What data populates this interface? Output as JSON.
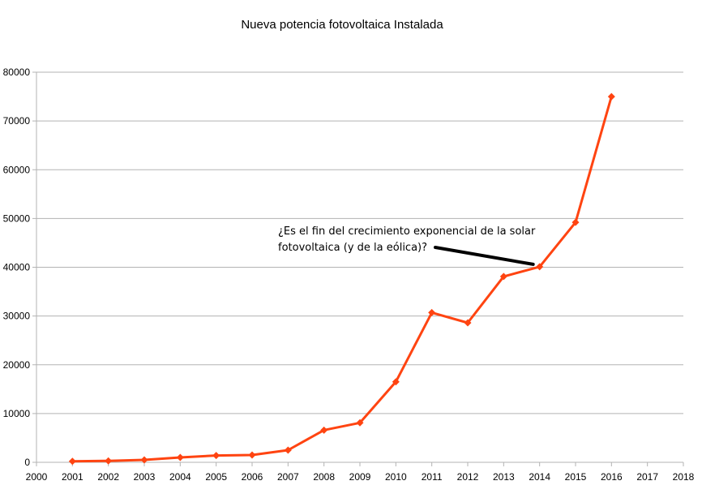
{
  "chart_data": {
    "type": "line",
    "title": "Nueva potencia fotovoltaica Instalada",
    "xlabel": "",
    "ylabel": "",
    "xlim": [
      2000,
      2018
    ],
    "ylim": [
      0,
      80000
    ],
    "x_ticks": [
      "2000",
      "2001",
      "2002",
      "2003",
      "2004",
      "2005",
      "2006",
      "2007",
      "2008",
      "2009",
      "2010",
      "2011",
      "2012",
      "2013",
      "2014",
      "2015",
      "2016",
      "2017",
      "2018"
    ],
    "y_ticks": [
      "0",
      "10000",
      "20000",
      "30000",
      "40000",
      "50000",
      "60000",
      "70000",
      "80000"
    ],
    "grid": "horizontal",
    "legend": "none",
    "series": [
      {
        "color": "#ff4411",
        "marker": "diamond",
        "x": [
          2001,
          2002,
          2003,
          2004,
          2005,
          2006,
          2007,
          2008,
          2009,
          2010,
          2011,
          2012,
          2013,
          2014,
          2015,
          2016
        ],
        "values": [
          200,
          300,
          500,
          1000,
          1400,
          1500,
          2500,
          6600,
          8100,
          16500,
          30700,
          28600,
          38100,
          40100,
          49200,
          75000
        ]
      }
    ],
    "annotation": {
      "text": "¿Es el fin del crecimiento exponencial de la solar fotovoltaica (y de la eólica)?",
      "arrow_target_x": 2014,
      "arrow_target_y": 40100
    }
  }
}
